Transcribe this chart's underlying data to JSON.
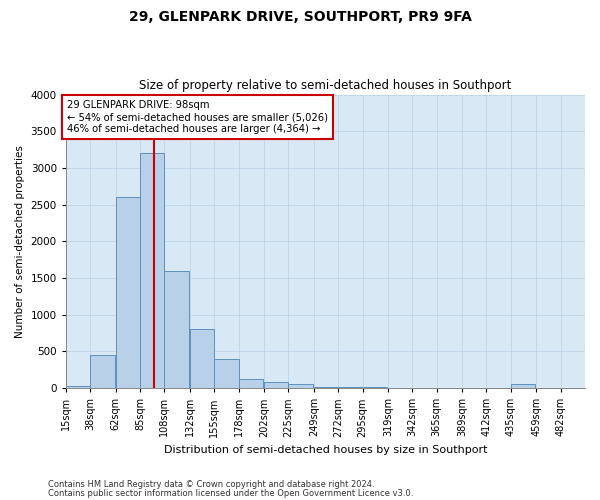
{
  "title1": "29, GLENPARK DRIVE, SOUTHPORT, PR9 9FA",
  "title2": "Size of property relative to semi-detached houses in Southport",
  "xlabel": "Distribution of semi-detached houses by size in Southport",
  "ylabel": "Number of semi-detached properties",
  "footnote1": "Contains HM Land Registry data © Crown copyright and database right 2024.",
  "footnote2": "Contains public sector information licensed under the Open Government Licence v3.0.",
  "annotation_line1": "29 GLENPARK DRIVE: 98sqm",
  "annotation_line2": "← 54% of semi-detached houses are smaller (5,026)",
  "annotation_line3": "46% of semi-detached houses are larger (4,364) →",
  "bar_color": "#b8d0e8",
  "bar_edge_color": "#5a90c0",
  "grid_color": "#c0d4e8",
  "background_color": "#d8e8f5",
  "property_line_x": 98,
  "property_line_color": "#cc0000",
  "categories": [
    "15sqm",
    "38sqm",
    "62sqm",
    "85sqm",
    "108sqm",
    "132sqm",
    "155sqm",
    "178sqm",
    "202sqm",
    "225sqm",
    "249sqm",
    "272sqm",
    "295sqm",
    "319sqm",
    "342sqm",
    "365sqm",
    "389sqm",
    "412sqm",
    "435sqm",
    "459sqm",
    "482sqm"
  ],
  "bin_edges": [
    15,
    38,
    62,
    85,
    108,
    132,
    155,
    178,
    202,
    225,
    249,
    272,
    295,
    319,
    342,
    365,
    389,
    412,
    435,
    459,
    482
  ],
  "bar_heights": [
    30,
    450,
    2600,
    3200,
    1600,
    800,
    400,
    130,
    80,
    60,
    20,
    10,
    10,
    5,
    0,
    0,
    0,
    0,
    50,
    0,
    0
  ],
  "ylim": [
    0,
    4000
  ],
  "yticks": [
    0,
    500,
    1000,
    1500,
    2000,
    2500,
    3000,
    3500,
    4000
  ],
  "annotation_box_color": "#ffffff",
  "annotation_box_edge": "#cc0000",
  "fig_width": 6.0,
  "fig_height": 5.0,
  "dpi": 100
}
